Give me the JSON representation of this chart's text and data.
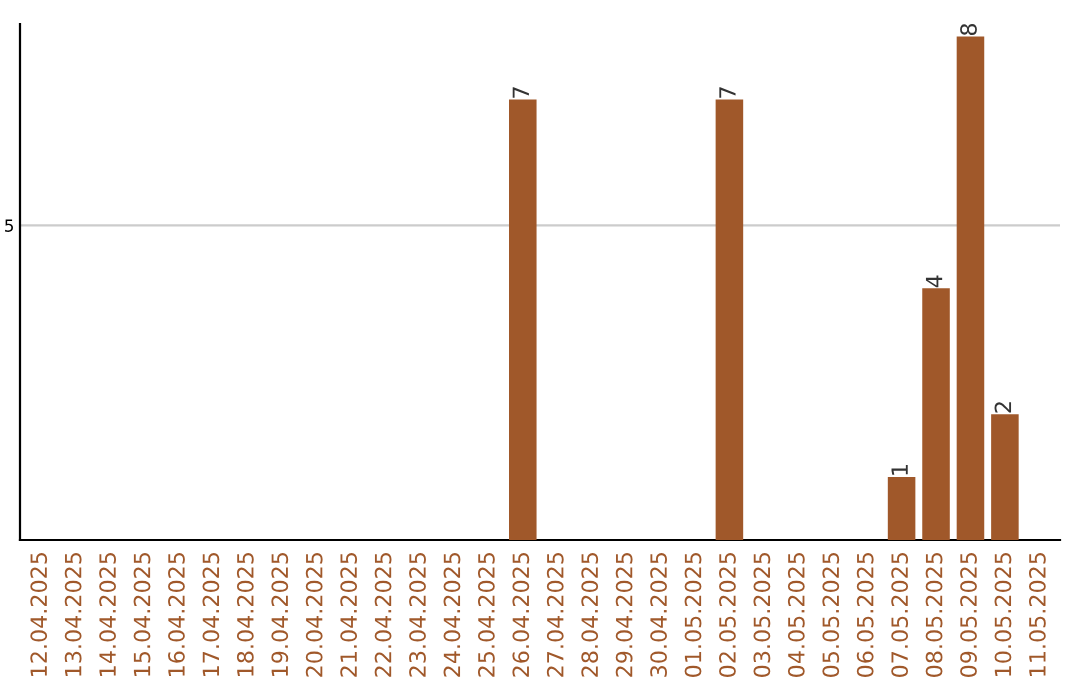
{
  "chart_data": {
    "type": "bar",
    "categories": [
      "12.04.2025",
      "13.04.2025",
      "14.04.2025",
      "15.04.2025",
      "16.04.2025",
      "17.04.2025",
      "18.04.2025",
      "19.04.2025",
      "20.04.2025",
      "21.04.2025",
      "22.04.2025",
      "23.04.2025",
      "24.04.2025",
      "25.04.2025",
      "26.04.2025",
      "27.04.2025",
      "28.04.2025",
      "29.04.2025",
      "30.04.2025",
      "01.05.2025",
      "02.05.2025",
      "03.05.2025",
      "04.05.2025",
      "05.05.2025",
      "06.05.2025",
      "07.05.2025",
      "08.05.2025",
      "09.05.2025",
      "10.05.2025",
      "11.05.2025"
    ],
    "values": [
      null,
      null,
      null,
      null,
      null,
      null,
      null,
      null,
      null,
      null,
      null,
      null,
      null,
      null,
      7,
      null,
      null,
      null,
      null,
      null,
      7,
      null,
      null,
      null,
      null,
      1,
      4,
      8,
      2,
      null
    ],
    "data_labels": true,
    "color": "#a0582a",
    "ylim": [
      0,
      8.2
    ],
    "yticks": [
      5
    ],
    "grid": "y"
  }
}
